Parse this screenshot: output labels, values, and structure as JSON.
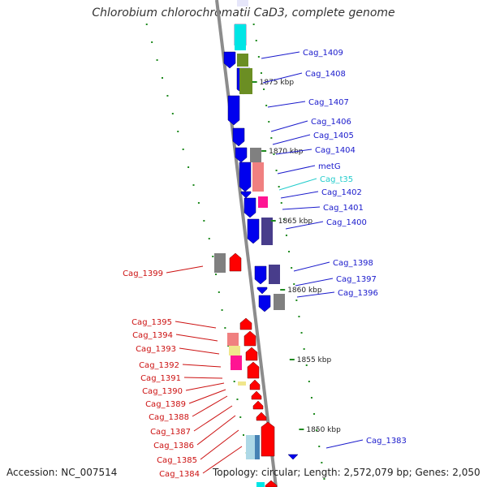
{
  "title": "Chlorobium chlorochromatii CaD3, complete genome",
  "footer": {
    "accession": "Accession: NC_007514",
    "topology": "Topology: circular; Length: 2,572,079 bp; Genes: 2,050"
  },
  "colors": {
    "backbone": "#8c8c8c",
    "forward_strand_gene": "#0000ee",
    "reverse_strand_gene": "#ff0000",
    "forward_label": "#1a1acc",
    "reverse_label": "#cc1111",
    "trna_label": "#22cccc",
    "tick": "#1f8a1f"
  },
  "scale_labels": [
    "1875 kbp",
    "1870 kbp",
    "1865 kbp",
    "1860 kbp",
    "1855 kbp",
    "1850 kbp"
  ],
  "labels_right": [
    "Cag_1409",
    "Cag_1408",
    "Cag_1407",
    "Cag_1406",
    "Cag_1405",
    "Cag_1404",
    "metG",
    "Cag_t35",
    "Cag_1402",
    "Cag_1401",
    "Cag_1400",
    "Cag_1398",
    "Cag_1397",
    "Cag_1396",
    "Cag_1383"
  ],
  "labels_left": [
    "Cag_1399",
    "Cag_1395",
    "Cag_1394",
    "Cag_1393",
    "Cag_1392",
    "Cag_1391",
    "Cag_1390",
    "Cag_1389",
    "Cag_1388",
    "Cag_1387",
    "Cag_1386",
    "Cag_1385",
    "Cag_1384"
  ],
  "cog_palette": [
    "#00e5e5",
    "#6b8e23",
    "#808080",
    "#f08080",
    "#ff1493",
    "#483d8b",
    "#f0e68c",
    "#4682b4",
    "#add8e6",
    "#e6e6fa"
  ]
}
